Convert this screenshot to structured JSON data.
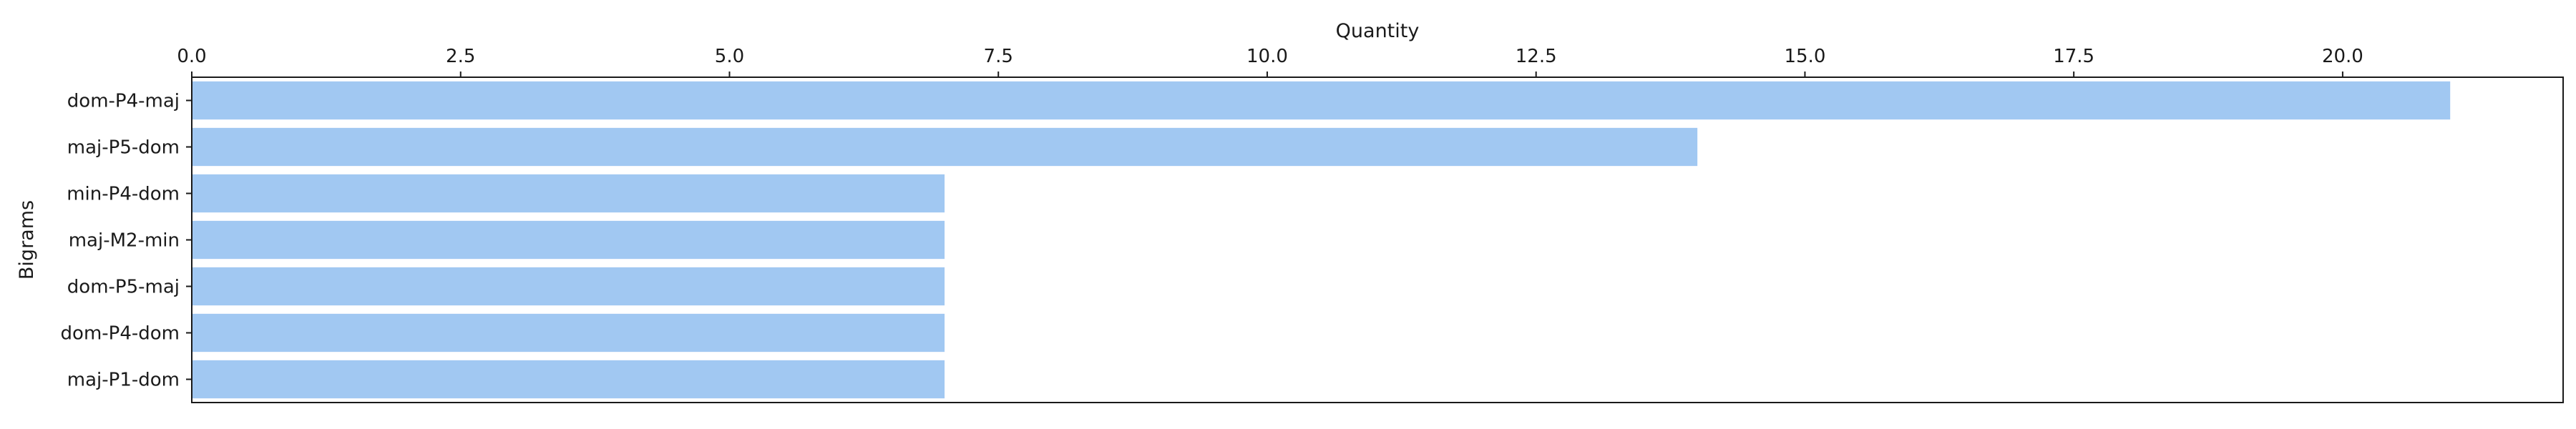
{
  "chart_data": {
    "type": "bar",
    "orientation": "horizontal",
    "title": "",
    "xlabel": "Quantity",
    "ylabel": "Bigrams",
    "categories": [
      "dom-P4-maj",
      "maj-P5-dom",
      "min-P4-dom",
      "maj-M2-min",
      "dom-P5-maj",
      "dom-P4-dom",
      "maj-P1-dom"
    ],
    "values": [
      21,
      14,
      7,
      7,
      7,
      7,
      7
    ],
    "xlim": [
      0,
      22.05
    ],
    "xticks": [
      0.0,
      2.5,
      5.0,
      7.5,
      10.0,
      12.5,
      15.0,
      17.5,
      20.0
    ],
    "xtick_labels": [
      "0.0",
      "2.5",
      "5.0",
      "7.5",
      "10.0",
      "12.5",
      "15.0",
      "17.5",
      "20.0"
    ],
    "x_axis_position": "top",
    "grid": false,
    "legend": "none",
    "bar_color": "#a1c8f2",
    "frame_color": "#1a1a1a"
  }
}
